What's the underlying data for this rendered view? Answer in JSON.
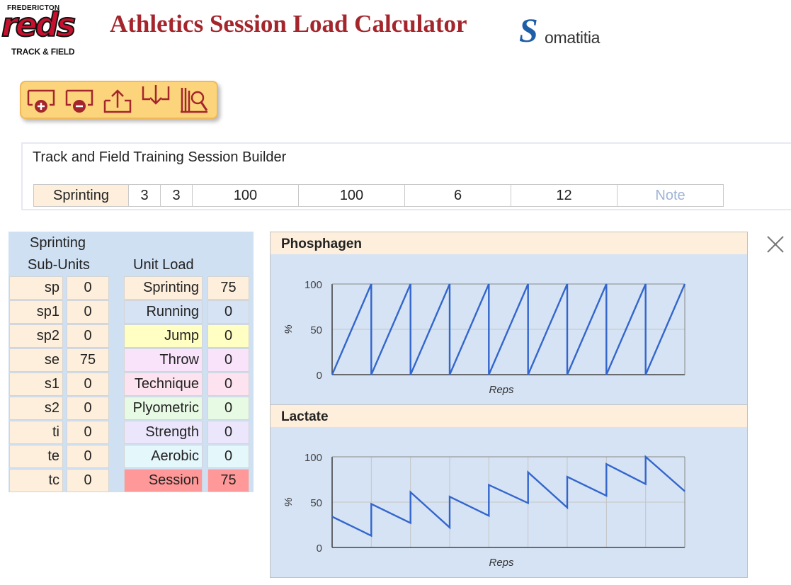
{
  "header": {
    "logo_top": "FREDERICTON",
    "logo_main": "reds",
    "logo_bottom": "TRACK & FIELD",
    "title": "Athletics Session Load Calculator",
    "brand_initial": "S",
    "brand_rest": "omatitia"
  },
  "toolbar": {
    "icons": [
      "add-icon",
      "remove-icon",
      "upload-icon",
      "download-icon",
      "library-search-icon"
    ]
  },
  "builder": {
    "title": "Track and Field Training Session Builder",
    "row": [
      "Sprinting",
      "3",
      "3",
      "100",
      "100",
      "6",
      "12"
    ],
    "note_placeholder": "Note"
  },
  "subunits": {
    "title_line1": "Sprinting",
    "title_line2": "Sub-Units",
    "rows": [
      {
        "name": "sp",
        "value": "0"
      },
      {
        "name": "sp1",
        "value": "0"
      },
      {
        "name": "sp2",
        "value": "0"
      },
      {
        "name": "se",
        "value": "75"
      },
      {
        "name": "s1",
        "value": "0"
      },
      {
        "name": "s2",
        "value": "0"
      },
      {
        "name": "ti",
        "value": "0"
      },
      {
        "name": "te",
        "value": "0"
      },
      {
        "name": "tc",
        "value": "0"
      }
    ]
  },
  "unitload": {
    "title": "Unit Load",
    "rows": [
      {
        "name": "Sprinting",
        "value": "75",
        "color": "#fdefdc"
      },
      {
        "name": "Running",
        "value": "0",
        "color": "#d6e3f4"
      },
      {
        "name": "Jump",
        "value": "0",
        "color": "#ffffc4"
      },
      {
        "name": "Throw",
        "value": "0",
        "color": "#f8e3fb"
      },
      {
        "name": "Technique",
        "value": "0",
        "color": "#fde3ef"
      },
      {
        "name": "Plyometric",
        "value": "0",
        "color": "#e7fae3"
      },
      {
        "name": "Strength",
        "value": "0",
        "color": "#ebe6fb"
      },
      {
        "name": "Aerobic",
        "value": "0",
        "color": "#e4f7fb"
      },
      {
        "name": "Session",
        "value": "75",
        "color": "#ff9898"
      }
    ]
  },
  "chart_data": [
    {
      "type": "line",
      "title": "Phosphagen",
      "xlabel": "Reps",
      "ylabel": "%",
      "ylim": [
        0,
        100
      ],
      "yticks": [
        0,
        50,
        100
      ],
      "grid": "horizontal",
      "color": "#3366cc",
      "x": [
        0,
        1,
        1,
        2,
        2,
        3,
        3,
        4,
        4,
        5,
        5,
        6,
        6,
        7,
        7,
        8,
        8,
        9
      ],
      "y": [
        0,
        100,
        0,
        100,
        0,
        100,
        0,
        100,
        0,
        100,
        0,
        100,
        0,
        100,
        0,
        100,
        0,
        100
      ]
    },
    {
      "type": "line",
      "title": "Lactate",
      "xlabel": "Reps",
      "ylabel": "%",
      "ylim": [
        0,
        100
      ],
      "yticks": [
        0,
        50,
        100
      ],
      "grid": "both",
      "color": "#3366cc",
      "x": [
        0,
        1,
        1,
        2,
        2,
        3,
        3,
        4,
        4,
        5,
        5,
        6,
        6,
        7,
        7,
        8,
        8,
        9
      ],
      "y": [
        34,
        13,
        48,
        27,
        61,
        22,
        56,
        35,
        69,
        49,
        83,
        44,
        78,
        57,
        92,
        70,
        100,
        62
      ]
    }
  ],
  "close_icon": "close-icon"
}
